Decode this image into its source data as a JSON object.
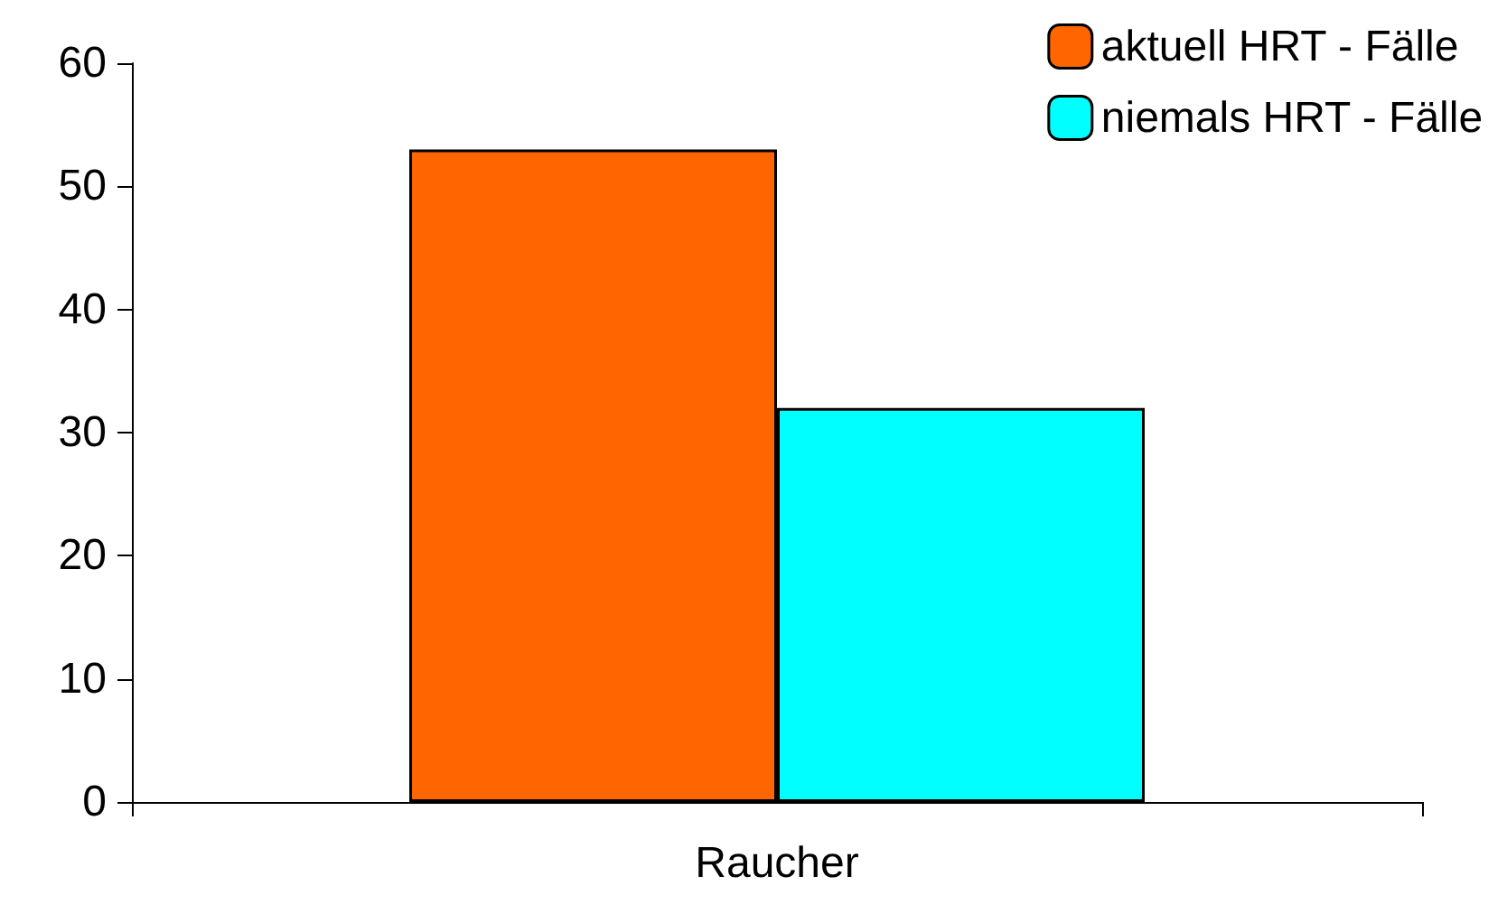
{
  "chart_data": {
    "type": "bar",
    "categories": [
      "Raucher"
    ],
    "series": [
      {
        "name": "aktuell HRT - Fälle",
        "color": "#ff6600",
        "values": [
          53
        ]
      },
      {
        "name": "niemals HRT - Fälle",
        "color": "#00ffff",
        "values": [
          32
        ]
      }
    ],
    "ylim": [
      0,
      60
    ],
    "yticks": [
      0,
      10,
      20,
      30,
      40,
      50,
      60
    ],
    "grid": false,
    "legend": "top right"
  }
}
